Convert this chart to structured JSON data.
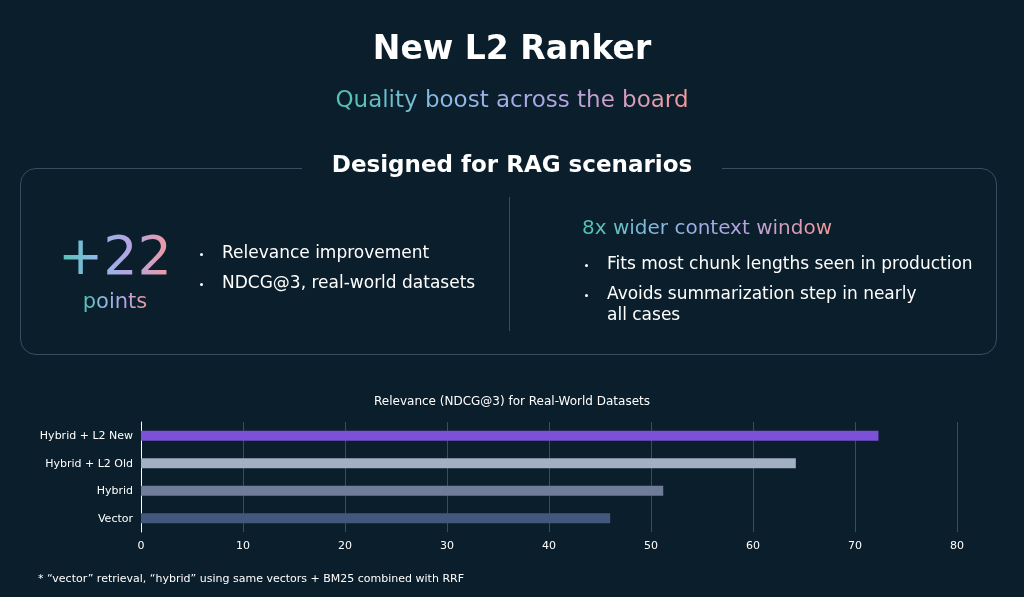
{
  "chart_data": [
    {
      "type": "other",
      "title": "New L2 Ranker",
      "subtitle": "Quality boost across the board",
      "annotations": [
        "Designed for RAG scenarios",
        "+22",
        "points",
        "Relevance improvement",
        "NDCG@3, real-world datasets",
        "8x wider context window",
        "Fits most chunk lengths seen in production",
        "Avoids summarization step in nearly all cases"
      ]
    },
    {
      "type": "bar",
      "orientation": "horizontal",
      "title": "Relevance (NDCG@3) for Real-World Datasets",
      "categories": [
        "Hybrid + L2 New",
        "Hybrid + L2 Old",
        "Hybrid",
        "Vector"
      ],
      "values": [
        72.3,
        64.2,
        51.2,
        46.0
      ],
      "colors": [
        "#7b52d6",
        "#a3afc2",
        "#6f7d98",
        "#44577c"
      ],
      "xlim": [
        0,
        80
      ],
      "xticks": [
        0,
        10,
        20,
        30,
        40,
        50,
        60,
        70,
        80
      ],
      "grid": "x",
      "annotations": [
        "* “vector” retrieval, “hybrid” using same vectors + BM25 combined with RRF"
      ]
    }
  ]
}
